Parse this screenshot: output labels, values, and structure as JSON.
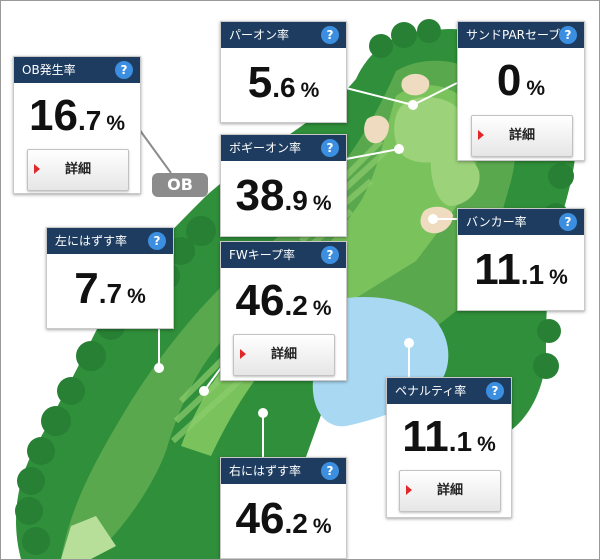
{
  "ob_tag": "OB",
  "cards": {
    "ob": {
      "title": "OB発生率",
      "int": "16",
      "dec": ".7",
      "unit": "%",
      "detail": "詳細"
    },
    "par_on": {
      "title": "パーオン率",
      "int": "5",
      "dec": ".6",
      "unit": "%"
    },
    "sand_save": {
      "title": "サンドPARセーブ率",
      "int": "0",
      "dec": "",
      "unit": "%",
      "detail": "詳細"
    },
    "bogey_on": {
      "title": "ボギーオン率",
      "int": "38",
      "dec": ".9",
      "unit": "%"
    },
    "bunker": {
      "title": "バンカー率",
      "int": "11",
      "dec": ".1",
      "unit": "%"
    },
    "miss_left": {
      "title": "左にはずす率",
      "int": "7",
      "dec": ".7",
      "unit": "%"
    },
    "fw_keep": {
      "title": "FWキープ率",
      "int": "46",
      "dec": ".2",
      "unit": "%",
      "detail": "詳細"
    },
    "penalty": {
      "title": "ペナルティ率",
      "int": "11",
      "dec": ".1",
      "unit": "%",
      "detail": "詳細"
    },
    "miss_right": {
      "title": "右にはずす率",
      "int": "46",
      "dec": ".2",
      "unit": "%"
    }
  },
  "help_glyph": "?",
  "colors": {
    "header": "#1d3c5f",
    "help": "#3c8fe0",
    "rough": "#2f8f3a",
    "fairway": "#7ac25c",
    "water": "#a9d8f3",
    "bunker": "#efdcc0",
    "detail_arrow": "#e0282b"
  }
}
